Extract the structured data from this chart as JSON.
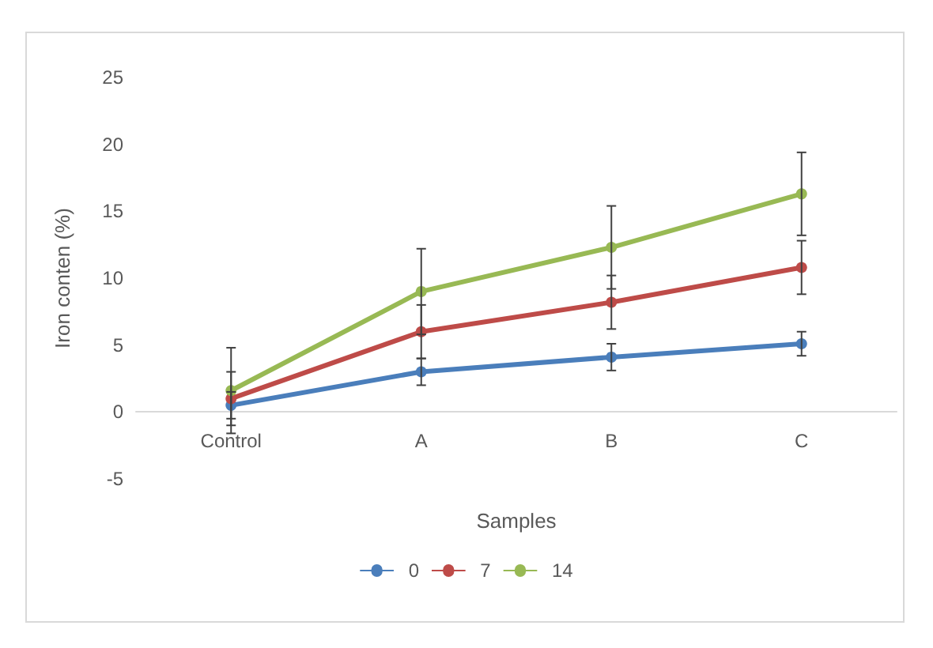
{
  "chart_data": {
    "type": "line",
    "xlabel": "Samples",
    "ylabel": "Iron conten (%)",
    "categories": [
      "Control",
      "A",
      "B",
      "C"
    ],
    "series": [
      {
        "name": "0",
        "color": "#4a7ebb",
        "values": [
          0.5,
          3.0,
          4.1,
          5.1
        ],
        "errors": [
          1,
          1,
          1,
          0.9
        ]
      },
      {
        "name": "7",
        "color": "#be4b48",
        "values": [
          1.0,
          6.0,
          8.2,
          10.8
        ],
        "errors": [
          2,
          2,
          2,
          2
        ]
      },
      {
        "name": "14",
        "color": "#98b954",
        "values": [
          1.6,
          9.0,
          12.3,
          16.3
        ],
        "errors": [
          3.2,
          3.2,
          3.1,
          3.1
        ]
      }
    ],
    "ylim": [
      -5,
      25
    ],
    "yticks": [
      -5,
      0,
      5,
      10,
      15,
      20,
      25
    ],
    "grid": false,
    "legend": "bottom",
    "marker": "circle",
    "line_style": "solid"
  }
}
